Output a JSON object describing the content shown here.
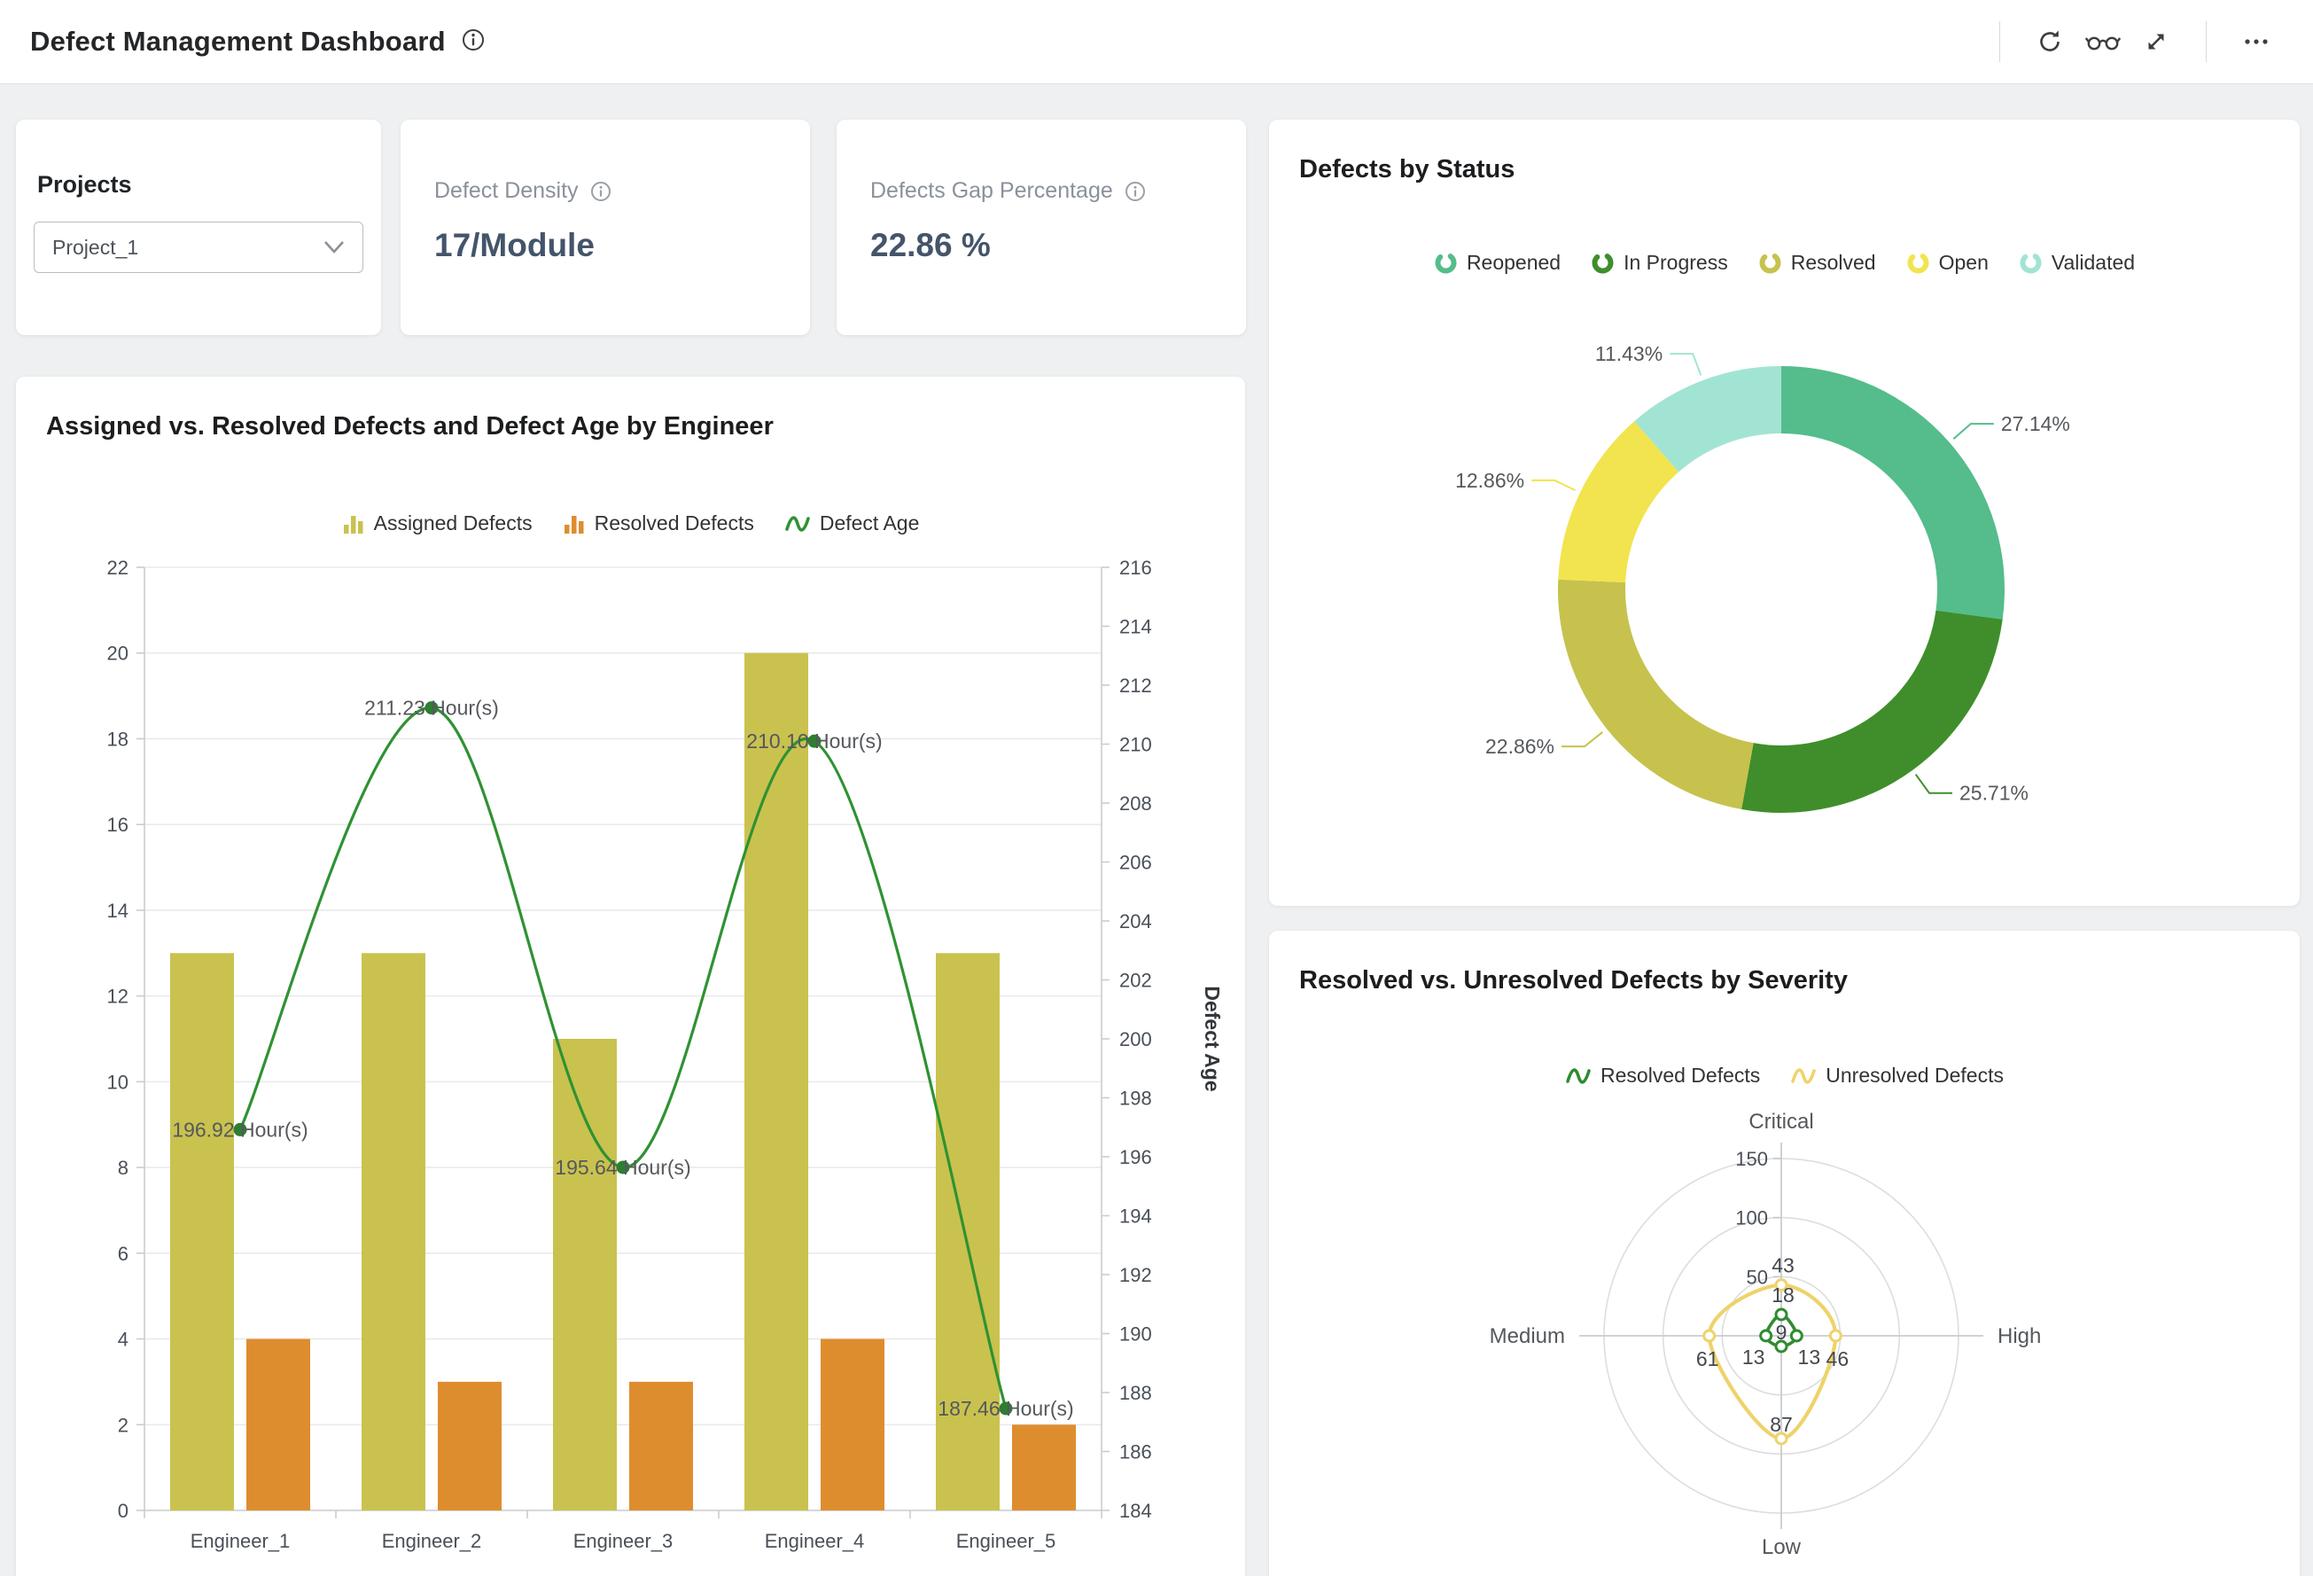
{
  "header": {
    "title": "Defect Management Dashboard",
    "icons": [
      "info",
      "refresh",
      "read-mode",
      "expand",
      "more"
    ]
  },
  "filters": {
    "label": "Projects",
    "value": "Project_1"
  },
  "kpis": [
    {
      "label": "Defect Density",
      "value": "17/Module"
    },
    {
      "label": "Defects Gap Percentage",
      "value": "22.86 %"
    }
  ],
  "chart_data": [
    {
      "type": "pie",
      "title": "Defects by Status",
      "donut": true,
      "legend_position": "top",
      "labels": [
        "Reopened",
        "In Progress",
        "Resolved",
        "Open",
        "Validated"
      ],
      "values": [
        27.14,
        25.71,
        22.86,
        12.86,
        11.43
      ],
      "value_labels": [
        "27.14%",
        "25.71%",
        "22.86%",
        "12.86%",
        "11.43%"
      ],
      "colors": [
        "#54bd8b",
        "#3f8e2b",
        "#c6c24d",
        "#f2e44e",
        "#a2e4d3"
      ]
    },
    {
      "type": "bar",
      "title": "Assigned vs. Resolved Defects and Defect Age by Engineer",
      "categories": [
        "Engineer_1",
        "Engineer_2",
        "Engineer_3",
        "Engineer_4",
        "Engineer_5"
      ],
      "series": [
        {
          "name": "Assigned Defects",
          "kind": "bar",
          "color": "#c9c24f",
          "values": [
            13,
            13,
            11,
            20,
            13
          ]
        },
        {
          "name": "Resolved Defects",
          "kind": "bar",
          "color": "#de8d2e",
          "values": [
            4,
            3,
            3,
            4,
            2
          ]
        },
        {
          "name": "Defect Age",
          "kind": "line",
          "color": "#2f9232",
          "marker_color": "#2e7d32",
          "yaxis": "right",
          "values": [
            196.92,
            211.23,
            195.64,
            210.1,
            187.46
          ],
          "point_labels": [
            "196.92 Hour(s)",
            "211.23 Hour(s)",
            "195.64 Hour(s)",
            "210.10 Hour(s)",
            "187.46 Hour(s)"
          ]
        }
      ],
      "ylim_left": [
        0,
        22
      ],
      "ytick_left": 2,
      "ylim_right": [
        184,
        216
      ],
      "ytick_right": 2,
      "ylabel_right": "Defect Age",
      "grid": true,
      "legend_position": "top"
    },
    {
      "type": "radar",
      "title": "Resolved vs. Unresolved Defects by Severity",
      "axes": [
        "Critical",
        "High",
        "Low",
        "Medium"
      ],
      "max": 150,
      "ticks": [
        50,
        100,
        150
      ],
      "series": [
        {
          "name": "Resolved Defects",
          "color": "#2f8c30",
          "values": [
            18,
            13,
            9,
            13
          ]
        },
        {
          "name": "Unresolved Defects",
          "color": "#eed36a",
          "values": [
            43,
            46,
            87,
            61
          ]
        }
      ],
      "legend_position": "top"
    }
  ]
}
